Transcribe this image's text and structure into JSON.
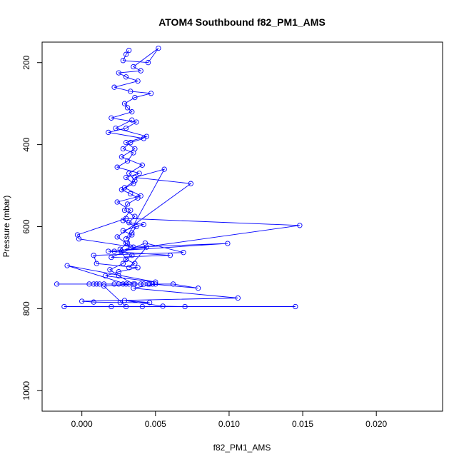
{
  "chart_data": {
    "type": "scatter",
    "title": "ATOM4 Southbound f82_PM1_AMS",
    "xlabel": "f82_PM1_AMS",
    "ylabel": "Pressure (mbar)",
    "xlim": [
      -0.0027,
      0.0245
    ],
    "ylim": [
      1050,
      150
    ],
    "y_reversed": true,
    "x_ticks": [
      0.0,
      0.005,
      0.01,
      0.015,
      0.02
    ],
    "x_tick_labels": [
      "0.000",
      "0.005",
      "0.010",
      "0.015",
      "0.020"
    ],
    "y_ticks": [
      200,
      400,
      600,
      800,
      1000
    ],
    "y_tick_labels": [
      "200",
      "400",
      "600",
      "800",
      "1000"
    ],
    "grid": false,
    "series": [
      {
        "color": "#0000ff",
        "marker": "open-circle",
        "line": true,
        "x": [
          0.0032,
          0.003,
          0.0028,
          0.0045,
          0.0052,
          0.0035,
          0.004,
          0.0025,
          0.003,
          0.0038,
          0.0022,
          0.0033,
          0.0047,
          0.0036,
          0.0029,
          0.0031,
          0.0034,
          0.002,
          0.0037,
          0.003,
          0.0018,
          0.0042,
          0.0033,
          0.0028,
          0.0035,
          0.0031,
          0.0024,
          0.0039,
          0.003,
          0.0035,
          0.0027,
          0.0033,
          0.0038,
          0.0031,
          0.0029,
          0.0036,
          0.0032,
          0.0042,
          0.0028,
          0.0034,
          0.003,
          0.0056,
          0.0036,
          0.0074,
          0.0024,
          0.003,
          0.0033,
          0.0027,
          0.0034,
          0.003,
          0.0036,
          0.0032,
          0.0044,
          0.0022,
          0.0148,
          0.003,
          -0.0003,
          -0.0002,
          0.0035,
          0.0099,
          0.0018,
          0.006,
          0.002,
          0.0043,
          0.0069,
          0.0008,
          0.001,
          0.0038,
          0.0025,
          0.0016,
          0.005,
          -0.001,
          0.003,
          0.0045,
          0.0022,
          0.0012,
          0.0008,
          0.0025,
          0.004,
          0.0048,
          0.0079,
          0.0062,
          -0.0017,
          0.0005,
          0.001,
          0.0015,
          0.0028,
          0.0032,
          0.0036,
          0.0042,
          0.0046,
          0.005,
          0.0035,
          0.0106,
          0.0,
          0.0008,
          0.0026,
          0.0046,
          0.0029,
          0.0055,
          0.007,
          0.0145,
          -0.0012,
          0.0041,
          0.002,
          0.003,
          0.0015,
          0.0035,
          0.0025,
          0.0019,
          0.0028,
          0.003,
          0.0026,
          0.0031,
          0.0034,
          0.0037,
          0.0028,
          0.0033,
          0.0024,
          0.004,
          0.0029,
          0.0036,
          0.0032,
          0.0041,
          0.0027,
          0.0036,
          0.003,
          0.0044,
          0.0023,
          0.0034
        ],
        "y": [
          170,
          180,
          195,
          200,
          165,
          210,
          220,
          225,
          235,
          245,
          260,
          270,
          275,
          285,
          300,
          310,
          320,
          335,
          345,
          360,
          370,
          385,
          395,
          410,
          420,
          440,
          455,
          470,
          480,
          495,
          510,
          520,
          530,
          545,
          560,
          575,
          590,
          595,
          610,
          620,
          630,
          460,
          480,
          495,
          625,
          640,
          650,
          660,
          670,
          680,
          690,
          700,
          650,
          660,
          597,
          580,
          620,
          630,
          650,
          641,
          660,
          670,
          675,
          640,
          663,
          670,
          690,
          700,
          710,
          720,
          735,
          695,
          740,
          740,
          740,
          740,
          740,
          740,
          740,
          740,
          750,
          740,
          740,
          740,
          740,
          740,
          740,
          740,
          740,
          740,
          740,
          740,
          750,
          774,
          782,
          784,
          785,
          785,
          780,
          794,
          795,
          795,
          795,
          795,
          795,
          795,
          745,
          740,
          720,
          705,
          690,
          680,
          655,
          640,
          615,
          600,
          585,
          560,
          540,
          525,
          505,
          488,
          470,
          450,
          430,
          410,
          395,
          380,
          360,
          340
        ]
      }
    ]
  }
}
